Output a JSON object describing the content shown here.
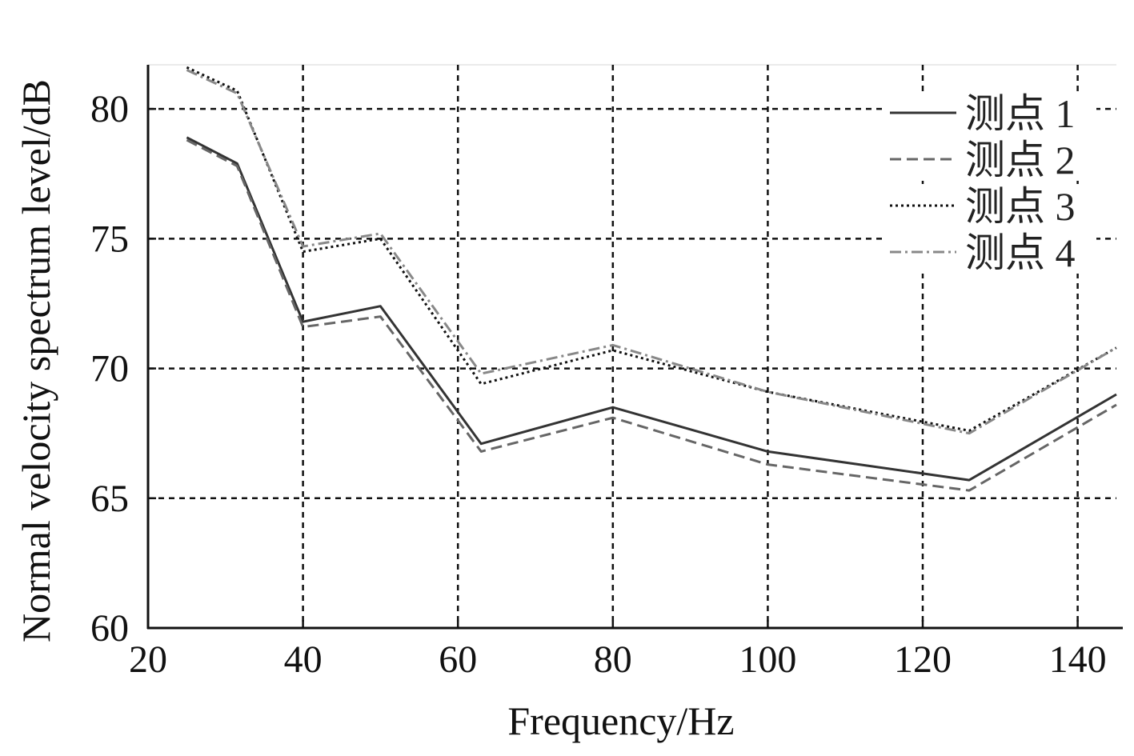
{
  "chart_data": {
    "type": "line",
    "title": "",
    "xlabel": "Frequency/Hz",
    "ylabel": "Normal velocity spectrum level/dB",
    "xlim": [
      20,
      145
    ],
    "ylim": [
      60,
      81.7
    ],
    "xticks": [
      20,
      40,
      60,
      80,
      100,
      120,
      140
    ],
    "yticks": [
      60,
      65,
      70,
      75,
      80
    ],
    "grid": true,
    "legend_position": "top-right",
    "series": [
      {
        "name": "测点 1",
        "color": "#333333",
        "dash": "solid",
        "x": [
          25,
          31.5,
          40,
          50,
          63,
          80,
          100,
          126,
          145
        ],
        "y": [
          78.9,
          77.9,
          71.8,
          72.4,
          67.1,
          68.5,
          66.8,
          65.7,
          69.0
        ]
      },
      {
        "name": "测点 2",
        "color": "#666666",
        "dash": "dashed",
        "x": [
          25,
          31.5,
          40,
          50,
          63,
          80,
          100,
          126,
          145
        ],
        "y": [
          78.8,
          77.8,
          71.6,
          72.0,
          66.8,
          68.1,
          66.3,
          65.3,
          68.6
        ]
      },
      {
        "name": "测点 3",
        "color": "#111111",
        "dash": "dotted",
        "x": [
          25,
          31.5,
          40,
          50,
          63,
          80,
          100,
          126,
          145
        ],
        "y": [
          81.6,
          80.7,
          74.5,
          75.0,
          69.4,
          70.7,
          69.1,
          67.6,
          70.8
        ]
      },
      {
        "name": "测点 4",
        "color": "#888888",
        "dash": "dashdot",
        "x": [
          25,
          31.5,
          40,
          50,
          63,
          80,
          100,
          126,
          145
        ],
        "y": [
          81.5,
          80.6,
          74.7,
          75.2,
          69.8,
          70.9,
          69.1,
          67.5,
          70.8
        ]
      }
    ]
  }
}
